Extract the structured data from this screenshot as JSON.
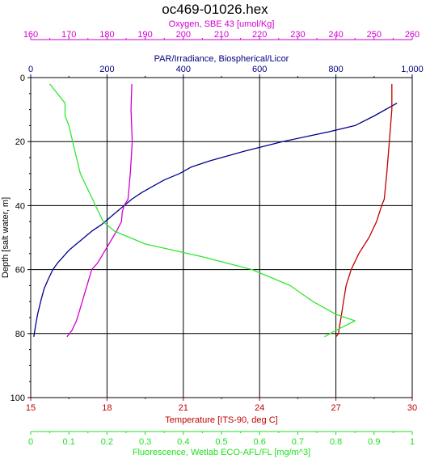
{
  "chart_data": {
    "type": "line",
    "title": "oc469-01026.hex",
    "grid": true,
    "depth_axis": {
      "label": "Depth [salt water, m]",
      "range": [
        0,
        100
      ],
      "inverted": true,
      "ticks": [
        "0",
        "20",
        "40",
        "60",
        "80",
        "100"
      ],
      "color": "#000000"
    },
    "x_axes": {
      "oxygen": {
        "label": "Oxygen, SBE 43 [umol/Kg]",
        "range": [
          160,
          260
        ],
        "ticks": [
          "160",
          "170",
          "180",
          "190",
          "200",
          "210",
          "220",
          "230",
          "240",
          "250",
          "260"
        ],
        "position": "top-outer",
        "color": "#d000d0"
      },
      "par": {
        "label": "PAR/Irradiance, Biospherical/Licor",
        "range": [
          0,
          1000
        ],
        "ticks": [
          "0",
          "200",
          "400",
          "600",
          "800",
          "1,000"
        ],
        "position": "top-inner",
        "color": "#00007f"
      },
      "temperature": {
        "label": "Temperature [ITS-90, deg C]",
        "range": [
          15,
          30
        ],
        "ticks": [
          "15",
          "18",
          "21",
          "24",
          "27",
          "30"
        ],
        "position": "bottom-inner",
        "color": "#c00000"
      },
      "fluorescence": {
        "label": "Fluorescence, Wetlab ECO-AFL/FL [mg/m^3]",
        "range": [
          0,
          1
        ],
        "ticks": [
          "0",
          "0.1",
          "0.2",
          "0.3",
          "0.4",
          "0.5",
          "0.6",
          "0.7",
          "0.8",
          "0.9",
          "1"
        ],
        "position": "bottom-outer",
        "color": "#20e020"
      }
    },
    "series": [
      {
        "axis": "par",
        "color": "#00008b",
        "points": [
          [
            960,
            8
          ],
          [
            900,
            12
          ],
          [
            850,
            15
          ],
          [
            780,
            17
          ],
          [
            660,
            20
          ],
          [
            560,
            23
          ],
          [
            470,
            26
          ],
          [
            420,
            28
          ],
          [
            390,
            30
          ],
          [
            350,
            32
          ],
          [
            320,
            34
          ],
          [
            290,
            36
          ],
          [
            265,
            38
          ],
          [
            245,
            40
          ],
          [
            225,
            42
          ],
          [
            205,
            44
          ],
          [
            185,
            46
          ],
          [
            160,
            48
          ],
          [
            140,
            50
          ],
          [
            120,
            52
          ],
          [
            100,
            54
          ],
          [
            85,
            56
          ],
          [
            70,
            58
          ],
          [
            58,
            60
          ],
          [
            46,
            63
          ],
          [
            35,
            66
          ],
          [
            26,
            70
          ],
          [
            18,
            74
          ],
          [
            12,
            78
          ],
          [
            8,
            81
          ]
        ]
      },
      {
        "axis": "oxygen",
        "color": "#d000d0",
        "points": [
          [
            186.5,
            2
          ],
          [
            186.3,
            10
          ],
          [
            186.6,
            20
          ],
          [
            186.1,
            30
          ],
          [
            185.5,
            38
          ],
          [
            184.5,
            40
          ],
          [
            184.0,
            42
          ],
          [
            183.8,
            45
          ],
          [
            182.5,
            48
          ],
          [
            181.5,
            50
          ],
          [
            180.5,
            52
          ],
          [
            179.0,
            55
          ],
          [
            177.5,
            58
          ],
          [
            176.0,
            60
          ],
          [
            175.0,
            64
          ],
          [
            174.0,
            68
          ],
          [
            173.0,
            72
          ],
          [
            172.0,
            76
          ],
          [
            170.8,
            79
          ],
          [
            169.5,
            81
          ]
        ]
      },
      {
        "axis": "temperature",
        "color": "#c00000",
        "points": [
          [
            29.2,
            2
          ],
          [
            29.2,
            10
          ],
          [
            29.1,
            20
          ],
          [
            29.0,
            30
          ],
          [
            28.9,
            38
          ],
          [
            28.8,
            40
          ],
          [
            28.6,
            45
          ],
          [
            28.3,
            50
          ],
          [
            27.9,
            55
          ],
          [
            27.6,
            60
          ],
          [
            27.4,
            65
          ],
          [
            27.3,
            70
          ],
          [
            27.2,
            75
          ],
          [
            27.1,
            80
          ],
          [
            27.0,
            81
          ]
        ]
      },
      {
        "axis": "fluorescence",
        "color": "#32e632",
        "points": [
          [
            0.05,
            2
          ],
          [
            0.07,
            5
          ],
          [
            0.09,
            8
          ],
          [
            0.09,
            12
          ],
          [
            0.1,
            15
          ],
          [
            0.11,
            20
          ],
          [
            0.12,
            25
          ],
          [
            0.13,
            30
          ],
          [
            0.15,
            35
          ],
          [
            0.17,
            40
          ],
          [
            0.19,
            45
          ],
          [
            0.22,
            48
          ],
          [
            0.3,
            52
          ],
          [
            0.45,
            56
          ],
          [
            0.58,
            60
          ],
          [
            0.68,
            65
          ],
          [
            0.74,
            70
          ],
          [
            0.8,
            74
          ],
          [
            0.85,
            76
          ],
          [
            0.8,
            79
          ],
          [
            0.77,
            81
          ]
        ]
      }
    ]
  }
}
